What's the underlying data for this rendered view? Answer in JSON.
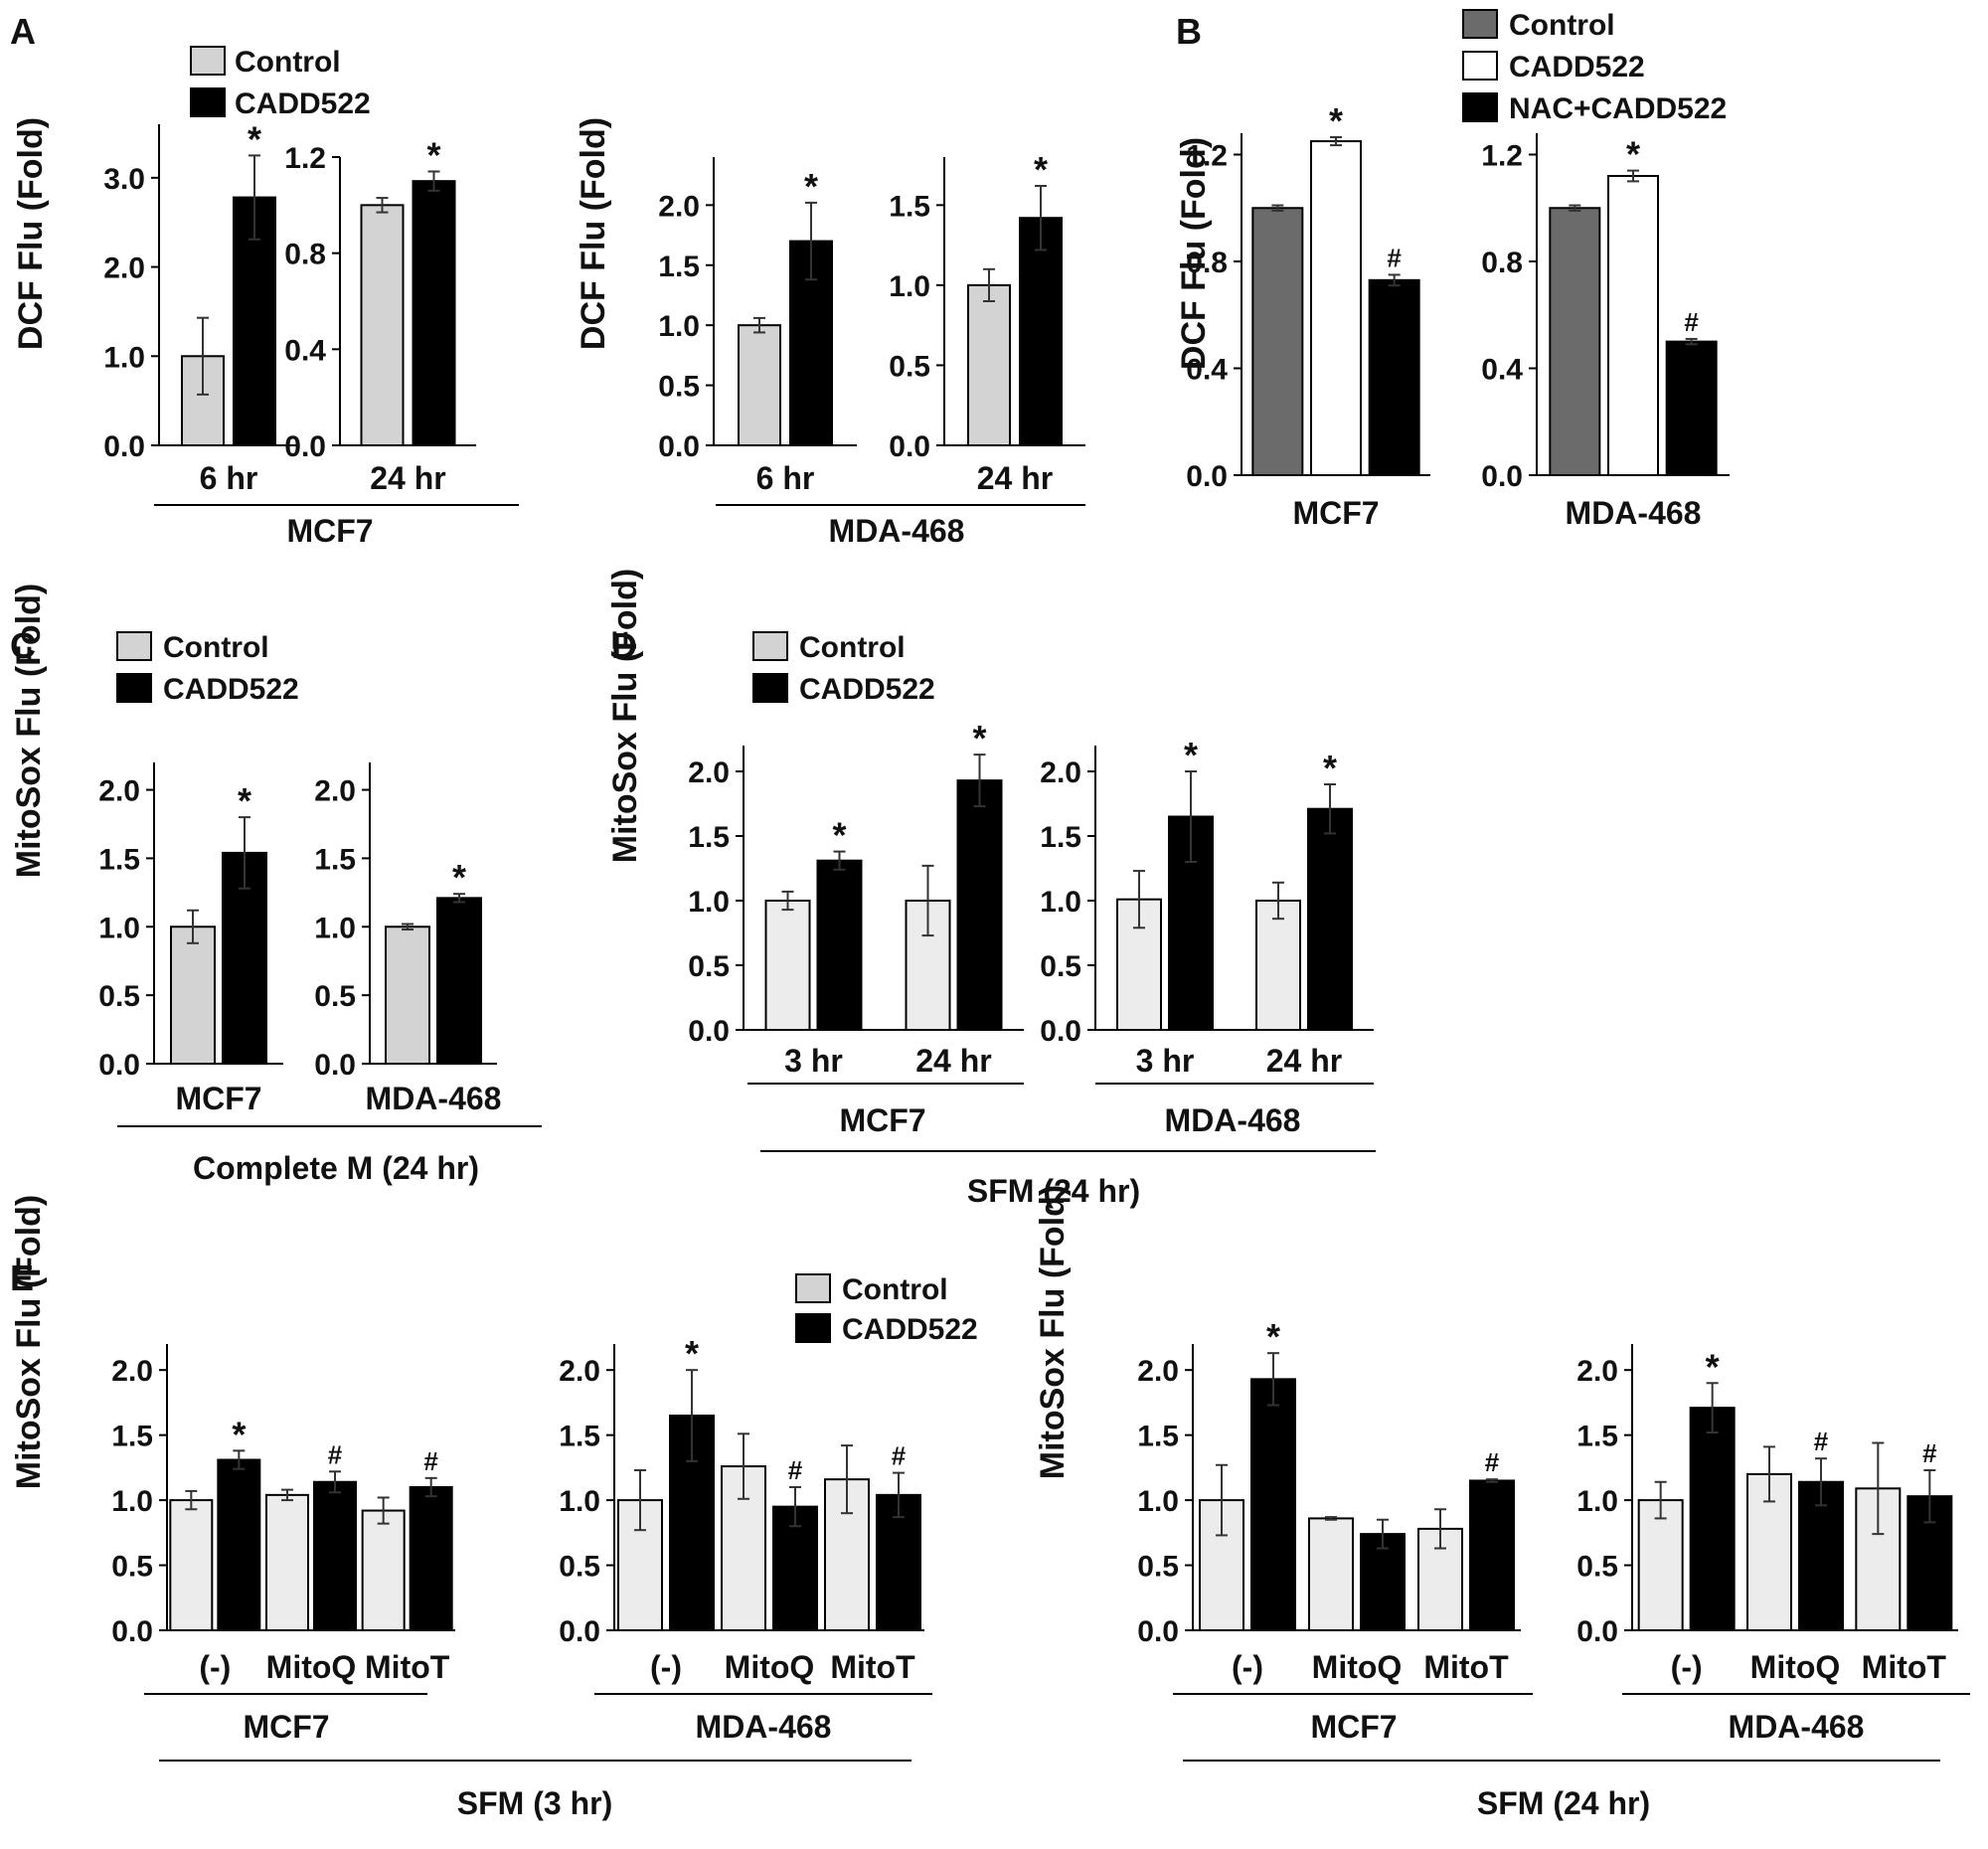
{
  "colors": {
    "control_light": "#d3d3d3",
    "control_pale": "#ececec",
    "control_dark": "#6b6b6b",
    "white": "#ffffff",
    "black": "#000000"
  },
  "panels": {
    "A": {
      "letter": "A",
      "legend": [
        "Control",
        "CADD522"
      ],
      "ylabel": "DCF Flu (Fold)",
      "group_labels": [
        "MCF7",
        "MDA-468"
      ]
    },
    "B": {
      "letter": "B",
      "legend": [
        "Control",
        "CADD522",
        "NAC+CADD522"
      ],
      "ylabel": "DCF Flu (Fold)"
    },
    "C": {
      "letter": "C",
      "legend": [
        "Control",
        "CADD522"
      ],
      "ylabel": "MitoSox Flu (Fold)",
      "group_label": "Complete M (24 hr)"
    },
    "D": {
      "letter": "D",
      "legend": [
        "Control",
        "CADD522"
      ],
      "ylabel": "MitoSox Flu (Fold)",
      "group_labels": [
        "MCF7",
        "MDA-468"
      ],
      "super_label": "SFM (24 hr)"
    },
    "E": {
      "letter": "E",
      "legend": [
        "Control",
        "CADD522"
      ],
      "ylabel": "MitoSox Flu (Fold)",
      "group_labels": [
        "MCF7",
        "MDA-468"
      ],
      "super_labels": [
        "SFM (3 hr)",
        "SFM (24 hr)"
      ]
    }
  },
  "chart_data": [
    {
      "id": "A1",
      "type": "bar",
      "categories": [
        "6 hr"
      ],
      "ylim": [
        0,
        3.6
      ],
      "yticks": [
        "0.0",
        "1.0",
        "2.0",
        "3.0"
      ],
      "series": [
        {
          "name": "Control",
          "values": [
            1.0
          ],
          "errors": [
            0.43
          ]
        },
        {
          "name": "CADD522",
          "values": [
            2.78
          ],
          "errors": [
            0.47
          ]
        }
      ],
      "annotations": [
        "",
        "*"
      ]
    },
    {
      "id": "A2",
      "type": "bar",
      "categories": [
        "24 hr"
      ],
      "ylim": [
        0,
        1.2
      ],
      "yticks": [
        "0.0",
        "0.4",
        "0.8",
        "1.2"
      ],
      "series": [
        {
          "name": "Control",
          "values": [
            1.0
          ],
          "errors": [
            0.03
          ]
        },
        {
          "name": "CADD522",
          "values": [
            1.1
          ],
          "errors": [
            0.04
          ]
        }
      ],
      "annotations": [
        "",
        "*"
      ]
    },
    {
      "id": "A3",
      "type": "bar",
      "categories": [
        "6 hr"
      ],
      "ylim": [
        0,
        2.4
      ],
      "yticks": [
        "0.0",
        "0.5",
        "1.0",
        "1.5",
        "2.0"
      ],
      "series": [
        {
          "name": "Control",
          "values": [
            1.0
          ],
          "errors": [
            0.06
          ]
        },
        {
          "name": "CADD522",
          "values": [
            1.7
          ],
          "errors": [
            0.32
          ]
        }
      ],
      "annotations": [
        "",
        "*"
      ]
    },
    {
      "id": "A4",
      "type": "bar",
      "categories": [
        "24 hr"
      ],
      "ylim": [
        0,
        1.8
      ],
      "yticks": [
        "0.0",
        "0.5",
        "1.0",
        "1.5"
      ],
      "series": [
        {
          "name": "Control",
          "values": [
            1.0
          ],
          "errors": [
            0.1
          ]
        },
        {
          "name": "CADD522",
          "values": [
            1.42
          ],
          "errors": [
            0.2
          ]
        }
      ],
      "annotations": [
        "",
        "*"
      ]
    },
    {
      "id": "B1",
      "type": "bar",
      "categories": [
        "MCF7"
      ],
      "ylim": [
        0,
        1.28
      ],
      "yticks": [
        "0.0",
        "0.4",
        "0.8",
        "1.2"
      ],
      "series": [
        {
          "name": "Control",
          "values": [
            1.0
          ],
          "errors": [
            0.01
          ]
        },
        {
          "name": "CADD522",
          "values": [
            1.25
          ],
          "errors": [
            0.015
          ]
        },
        {
          "name": "NAC+CADD522",
          "values": [
            0.73
          ],
          "errors": [
            0.02
          ]
        }
      ],
      "annotations": [
        "",
        "*",
        "#"
      ]
    },
    {
      "id": "B2",
      "type": "bar",
      "categories": [
        "MDA-468"
      ],
      "ylim": [
        0,
        1.28
      ],
      "yticks": [
        "0.0",
        "0.4",
        "0.8",
        "1.2"
      ],
      "series": [
        {
          "name": "Control",
          "values": [
            1.0
          ],
          "errors": [
            0.01
          ]
        },
        {
          "name": "CADD522",
          "values": [
            1.12
          ],
          "errors": [
            0.02
          ]
        },
        {
          "name": "NAC+CADD522",
          "values": [
            0.5
          ],
          "errors": [
            0.01
          ]
        }
      ],
      "annotations": [
        "",
        "*",
        "#"
      ]
    },
    {
      "id": "C1",
      "type": "bar",
      "categories": [
        "MCF7"
      ],
      "ylim": [
        0,
        2.2
      ],
      "yticks": [
        "0.0",
        "0.5",
        "1.0",
        "1.5",
        "2.0"
      ],
      "series": [
        {
          "name": "Control",
          "values": [
            1.0
          ],
          "errors": [
            0.12
          ]
        },
        {
          "name": "CADD522",
          "values": [
            1.54
          ],
          "errors": [
            0.26
          ]
        }
      ],
      "annotations": [
        "",
        "*"
      ]
    },
    {
      "id": "C2",
      "type": "bar",
      "categories": [
        "MDA-468"
      ],
      "ylim": [
        0,
        2.2
      ],
      "yticks": [
        "0.0",
        "0.5",
        "1.0",
        "1.5",
        "2.0"
      ],
      "series": [
        {
          "name": "Control",
          "values": [
            1.0
          ],
          "errors": [
            0.02
          ]
        },
        {
          "name": "CADD522",
          "values": [
            1.21
          ],
          "errors": [
            0.03
          ]
        }
      ],
      "annotations": [
        "",
        "*"
      ]
    },
    {
      "id": "D1",
      "type": "bar",
      "categories": [
        "3 hr",
        "24 hr"
      ],
      "ylim": [
        0,
        2.2
      ],
      "yticks": [
        "0.0",
        "0.5",
        "1.0",
        "1.5",
        "2.0"
      ],
      "series": [
        {
          "name": "Control",
          "values": [
            1.0,
            1.0
          ],
          "errors": [
            0.07,
            0.27
          ]
        },
        {
          "name": "CADD522",
          "values": [
            1.31,
            1.93
          ],
          "errors": [
            0.07,
            0.2
          ]
        }
      ],
      "annotations": [
        [
          "",
          "*"
        ],
        [
          "",
          "*"
        ]
      ]
    },
    {
      "id": "D2",
      "type": "bar",
      "categories": [
        "3 hr",
        "24 hr"
      ],
      "ylim": [
        0,
        2.2
      ],
      "yticks": [
        "0.0",
        "0.5",
        "1.0",
        "1.5",
        "2.0"
      ],
      "series": [
        {
          "name": "Control",
          "values": [
            1.01,
            1.0
          ],
          "errors": [
            0.22,
            0.14
          ]
        },
        {
          "name": "CADD522",
          "values": [
            1.65,
            1.71
          ],
          "errors": [
            0.35,
            0.19
          ]
        }
      ],
      "annotations": [
        [
          "",
          "*"
        ],
        [
          "",
          "*"
        ]
      ]
    },
    {
      "id": "E1",
      "type": "bar",
      "categories": [
        "(-)",
        "MitoQ",
        "MitoT"
      ],
      "ylim": [
        0,
        2.2
      ],
      "yticks": [
        "0.0",
        "0.5",
        "1.0",
        "1.5",
        "2.0"
      ],
      "series": [
        {
          "name": "Control",
          "values": [
            1.0,
            1.04,
            0.92
          ],
          "errors": [
            0.07,
            0.04,
            0.1
          ]
        },
        {
          "name": "CADD522",
          "values": [
            1.31,
            1.14,
            1.1
          ],
          "errors": [
            0.07,
            0.08,
            0.07
          ]
        }
      ],
      "annotations": [
        [
          "",
          "*"
        ],
        [
          "",
          "#"
        ],
        [
          "",
          "#"
        ]
      ]
    },
    {
      "id": "E2",
      "type": "bar",
      "categories": [
        "(-)",
        "MitoQ",
        "MitoT"
      ],
      "ylim": [
        0,
        2.2
      ],
      "yticks": [
        "0.0",
        "0.5",
        "1.0",
        "1.5",
        "2.0"
      ],
      "series": [
        {
          "name": "Control",
          "values": [
            1.0,
            1.26,
            1.16
          ],
          "errors": [
            0.23,
            0.25,
            0.26
          ]
        },
        {
          "name": "CADD522",
          "values": [
            1.65,
            0.95,
            1.04
          ],
          "errors": [
            0.35,
            0.15,
            0.17
          ]
        }
      ],
      "annotations": [
        [
          "",
          "*"
        ],
        [
          "",
          "#"
        ],
        [
          "",
          "#"
        ]
      ]
    },
    {
      "id": "E3",
      "type": "bar",
      "categories": [
        "(-)",
        "MitoQ",
        "MitoT"
      ],
      "ylim": [
        0,
        2.2
      ],
      "yticks": [
        "0.0",
        "0.5",
        "1.0",
        "1.5",
        "2.0"
      ],
      "series": [
        {
          "name": "Control",
          "values": [
            1.0,
            0.86,
            0.78
          ],
          "errors": [
            0.27,
            0.01,
            0.15
          ]
        },
        {
          "name": "CADD522",
          "values": [
            1.93,
            0.74,
            1.15
          ],
          "errors": [
            0.2,
            0.11,
            0.01
          ]
        }
      ],
      "annotations": [
        [
          "",
          "*"
        ],
        [
          "",
          ""
        ],
        [
          "",
          "#"
        ]
      ]
    },
    {
      "id": "E4",
      "type": "bar",
      "categories": [
        "(-)",
        "MitoQ",
        "MitoT"
      ],
      "ylim": [
        0,
        2.2
      ],
      "yticks": [
        "0.0",
        "0.5",
        "1.0",
        "1.5",
        "2.0"
      ],
      "series": [
        {
          "name": "Control",
          "values": [
            1.0,
            1.2,
            1.09
          ],
          "errors": [
            0.14,
            0.21,
            0.35
          ]
        },
        {
          "name": "CADD522",
          "values": [
            1.71,
            1.14,
            1.03
          ],
          "errors": [
            0.19,
            0.18,
            0.2
          ]
        }
      ],
      "annotations": [
        [
          "",
          "*"
        ],
        [
          "",
          "#"
        ],
        [
          "",
          "#"
        ]
      ]
    }
  ]
}
